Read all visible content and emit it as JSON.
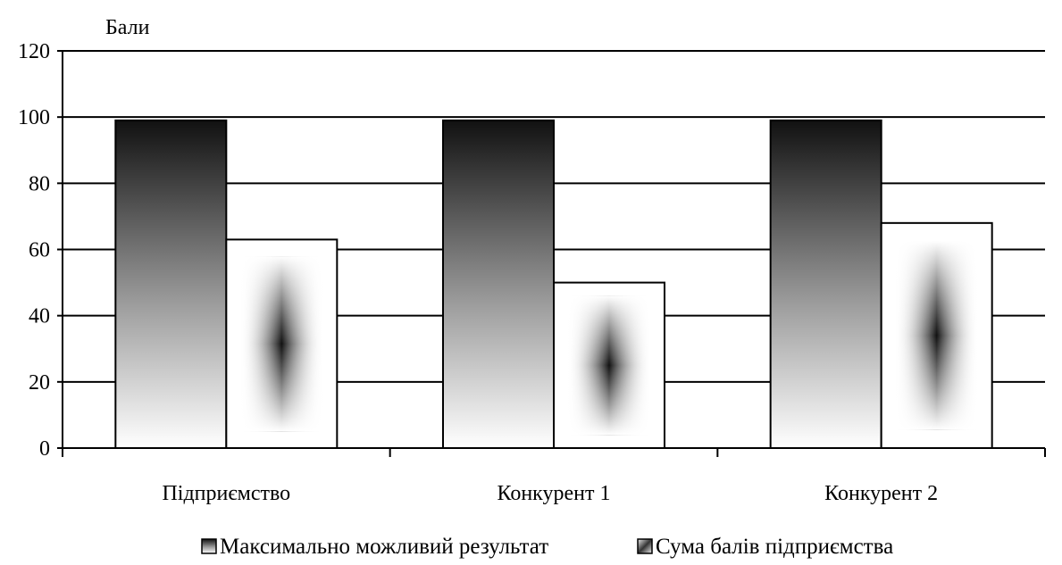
{
  "chart_data": {
    "type": "bar",
    "ylabel": "Бали",
    "ylim": [
      0,
      120
    ],
    "yticks": [
      0,
      20,
      40,
      60,
      80,
      100,
      120
    ],
    "grid": true,
    "legend_position": "bottom",
    "categories": [
      "Підприємство",
      "Конкурент 1",
      "Конкурент 2"
    ],
    "series": [
      {
        "name": "Максимально можливий результат",
        "values": [
          99,
          99,
          99
        ]
      },
      {
        "name": "Сума балів підприємства",
        "values": [
          63,
          50,
          68
        ]
      }
    ]
  },
  "colors": {
    "axis": "#000000",
    "bar_outline": "#000000",
    "gradient_dark": "#111111",
    "gradient_light": "#ffffff"
  }
}
